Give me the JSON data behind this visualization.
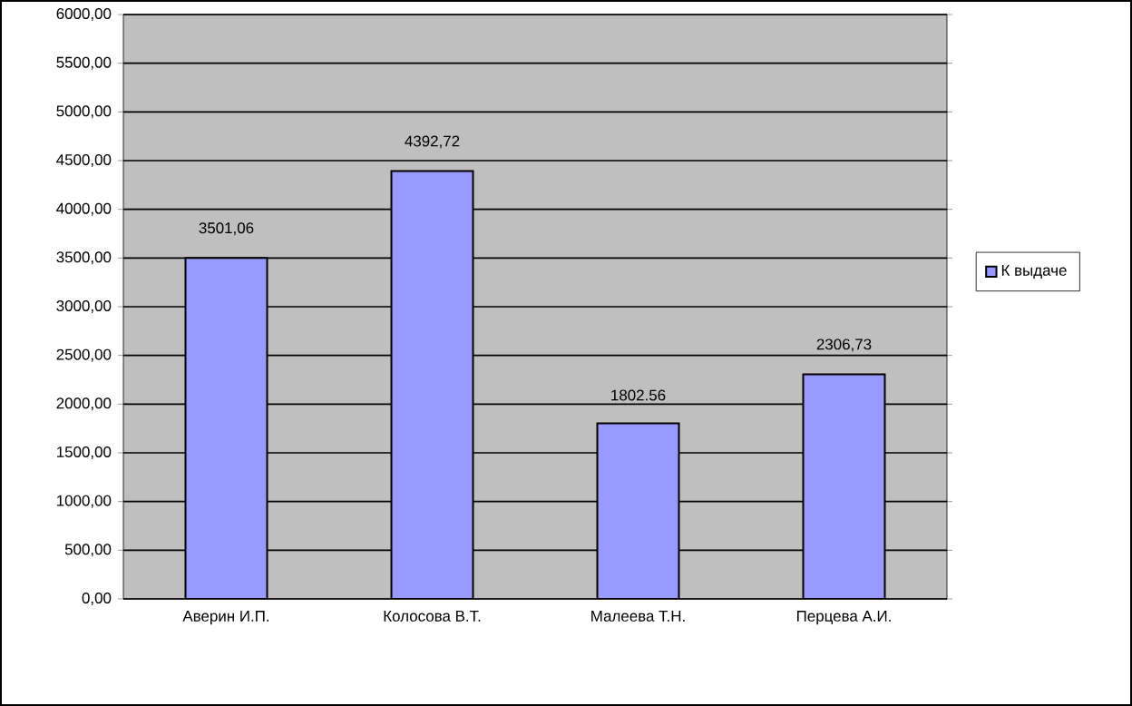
{
  "chart_data": {
    "type": "bar",
    "categories": [
      "Аверин И.П.",
      "Колосова В.Т.",
      "Малеева Т.Н.",
      "Перцева А.И."
    ],
    "series": [
      {
        "name": "К выдаче",
        "color": "#9999ff",
        "values": [
          3501.06,
          4392.72,
          1802.56,
          2306.73
        ]
      }
    ],
    "value_labels": [
      "3501,06",
      "4392,72",
      "1802.56",
      "2306,73"
    ],
    "ylim": [
      0,
      6000
    ],
    "yticks": [
      {
        "value": 0,
        "label": "0,00"
      },
      {
        "value": 500,
        "label": "500,00"
      },
      {
        "value": 1000,
        "label": "1000,00"
      },
      {
        "value": 1500,
        "label": "1500,00"
      },
      {
        "value": 2000,
        "label": "2000,00"
      },
      {
        "value": 2500,
        "label": "2500,00"
      },
      {
        "value": 3000,
        "label": "3000,00"
      },
      {
        "value": 3500,
        "label": "3500,00"
      },
      {
        "value": 4000,
        "label": "4000,00"
      },
      {
        "value": 4500,
        "label": "4500,00"
      },
      {
        "value": 5000,
        "label": "5000,00"
      },
      {
        "value": 5500,
        "label": "5500,00"
      },
      {
        "value": 6000,
        "label": "6000,00"
      }
    ],
    "grid": "y",
    "legend": "right"
  }
}
